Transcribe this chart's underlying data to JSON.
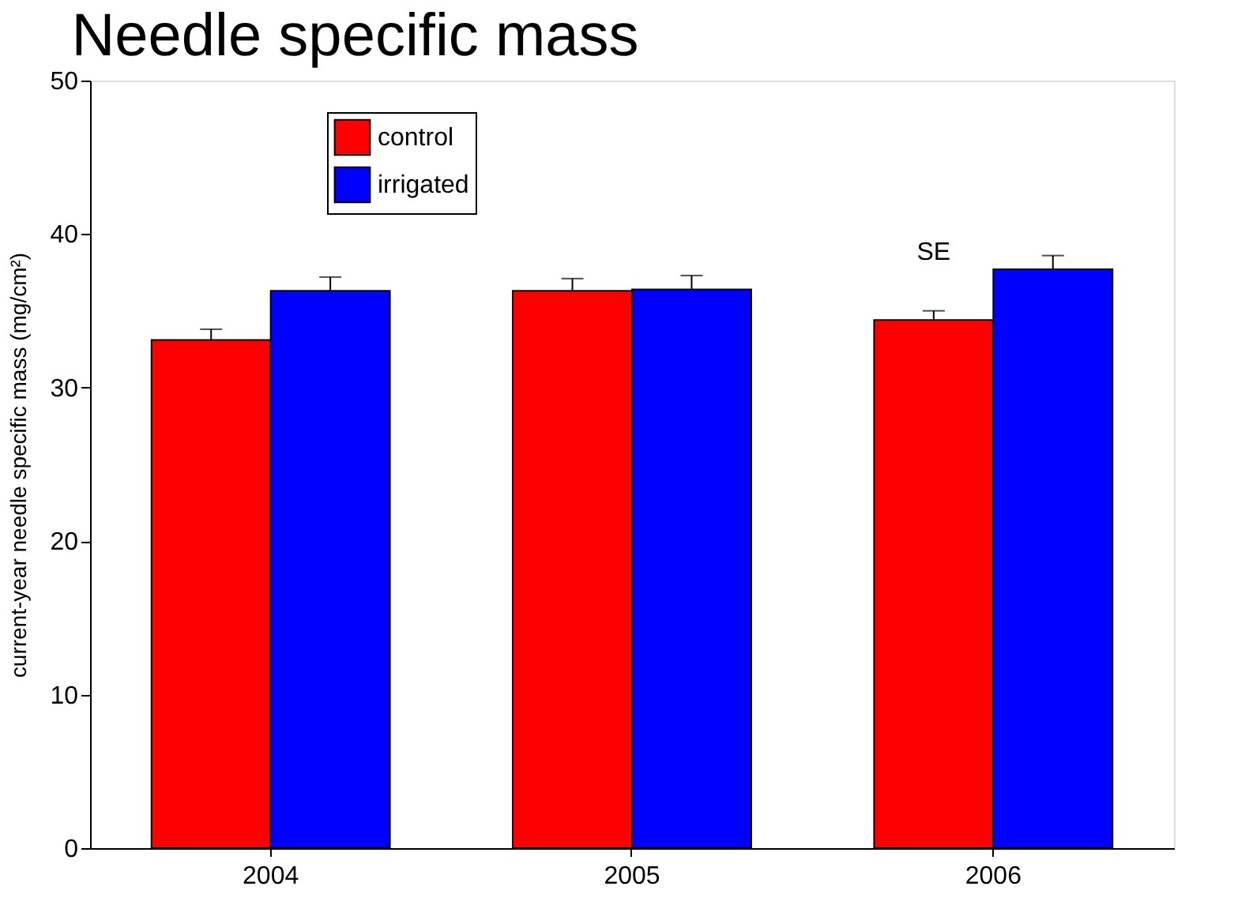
{
  "chart_data": {
    "type": "bar",
    "title": "Needle specific mass",
    "ylabel": "current-year needle specific mass (mg/cm²)",
    "categories": [
      "2004",
      "2005",
      "2006"
    ],
    "series": [
      {
        "name": "control",
        "color": "#ff0000",
        "values": [
          33.1,
          36.3,
          34.4
        ],
        "errors": [
          [
            33.1,
            33.8
          ],
          [
            36.3,
            37.1
          ],
          [
            34.4,
            35.0
          ]
        ]
      },
      {
        "name": "irrigated",
        "color": "#0000ff",
        "values": [
          36.3,
          36.4,
          37.7
        ],
        "errors": [
          [
            36.3,
            37.2
          ],
          [
            36.4,
            37.3
          ],
          [
            37.7,
            38.6
          ]
        ]
      }
    ],
    "ylim": [
      0,
      50
    ],
    "yticks": [
      0,
      10,
      20,
      30,
      40,
      50
    ],
    "grid": false,
    "legend": "top left",
    "annotations": [
      {
        "text": "SE",
        "x": "2006",
        "y": 38
      }
    ]
  }
}
